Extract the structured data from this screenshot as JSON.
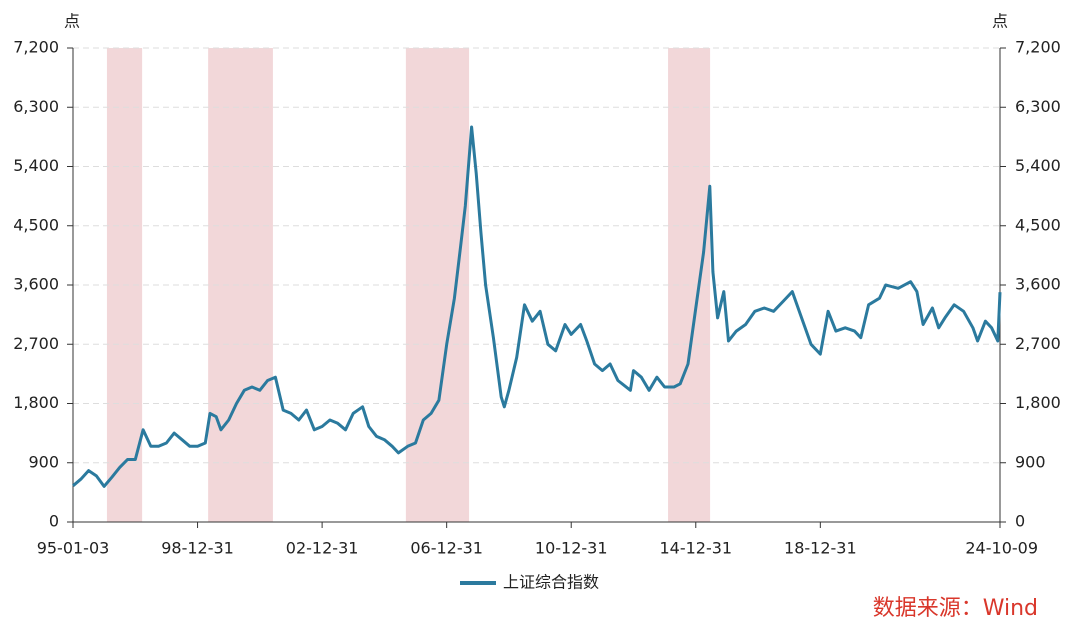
{
  "chart_data": {
    "type": "line",
    "y_unit": "点",
    "y2_unit": "点",
    "x": [
      1995.0,
      1995.25,
      1995.5,
      1995.75,
      1996.0,
      1996.25,
      1996.5,
      1996.75,
      1997.0,
      1997.25,
      1997.5,
      1997.75,
      1998.0,
      1998.25,
      1998.5,
      1998.75,
      1999.0,
      1999.25,
      1999.4,
      1999.6,
      1999.75,
      2000.0,
      2000.25,
      2000.5,
      2000.75,
      2001.0,
      2001.25,
      2001.5,
      2001.75,
      2002.0,
      2002.25,
      2002.5,
      2002.75,
      2003.0,
      2003.25,
      2003.5,
      2003.75,
      2004.0,
      2004.3,
      2004.5,
      2004.75,
      2005.0,
      2005.25,
      2005.45,
      2005.75,
      2006.0,
      2006.25,
      2006.5,
      2006.75,
      2007.0,
      2007.25,
      2007.45,
      2007.6,
      2007.8,
      2007.95,
      2008.1,
      2008.25,
      2008.5,
      2008.75,
      2008.85,
      2009.0,
      2009.25,
      2009.5,
      2009.75,
      2010.0,
      2010.25,
      2010.5,
      2010.8,
      2011.0,
      2011.3,
      2011.5,
      2011.75,
      2012.0,
      2012.25,
      2012.5,
      2012.9,
      2013.0,
      2013.25,
      2013.5,
      2013.75,
      2014.0,
      2014.3,
      2014.5,
      2014.75,
      2015.0,
      2015.25,
      2015.45,
      2015.55,
      2015.7,
      2015.9,
      2016.05,
      2016.3,
      2016.6,
      2016.9,
      2017.2,
      2017.5,
      2017.8,
      2018.1,
      2018.4,
      2018.7,
      2019.0,
      2019.25,
      2019.5,
      2019.8,
      2020.1,
      2020.3,
      2020.55,
      2020.9,
      2021.1,
      2021.5,
      2021.9,
      2022.1,
      2022.3,
      2022.6,
      2022.8,
      2023.0,
      2023.3,
      2023.6,
      2023.9,
      2024.05,
      2024.3,
      2024.5,
      2024.7,
      2024.77
    ],
    "series": [
      {
        "name": "上证综合指数",
        "color": "#2b7a9e",
        "values": [
          550,
          650,
          780,
          700,
          540,
          680,
          830,
          950,
          950,
          1400,
          1150,
          1150,
          1200,
          1350,
          1250,
          1150,
          1150,
          1200,
          1650,
          1600,
          1400,
          1550,
          1800,
          2000,
          2050,
          2000,
          2150,
          2200,
          1700,
          1650,
          1550,
          1700,
          1400,
          1450,
          1550,
          1500,
          1400,
          1650,
          1750,
          1450,
          1300,
          1250,
          1150,
          1050,
          1150,
          1200,
          1550,
          1650,
          1850,
          2700,
          3400,
          4200,
          4800,
          6000,
          5300,
          4400,
          3600,
          2800,
          1900,
          1750,
          2000,
          2500,
          3300,
          3050,
          3200,
          2700,
          2600,
          3000,
          2850,
          3000,
          2750,
          2400,
          2300,
          2400,
          2150,
          2000,
          2300,
          2200,
          2000,
          2200,
          2050,
          2050,
          2100,
          2400,
          3250,
          4100,
          5100,
          3800,
          3100,
          3500,
          2750,
          2900,
          3000,
          3200,
          3250,
          3200,
          3350,
          3500,
          3100,
          2700,
          2550,
          3200,
          2900,
          2950,
          2900,
          2800,
          3300,
          3400,
          3600,
          3550,
          3650,
          3500,
          3000,
          3250,
          2950,
          3100,
          3300,
          3200,
          2950,
          2750,
          3050,
          2950,
          2750,
          3490
        ]
      }
    ],
    "shaded": [
      [
        1996.09,
        1997.22
      ],
      [
        1999.34,
        2001.42
      ],
      [
        2005.69,
        2007.72
      ],
      [
        2014.11,
        2015.46
      ]
    ],
    "shade_color": "#f2d7d9",
    "xlim": [
      1995.0,
      2024.77
    ],
    "xticks": [
      {
        "value": 1995.0,
        "label": "95-01-03"
      },
      {
        "value": 1999.0,
        "label": "98-12-31"
      },
      {
        "value": 2003.0,
        "label": "02-12-31"
      },
      {
        "value": 2007.0,
        "label": "06-12-31"
      },
      {
        "value": 2011.0,
        "label": "10-12-31"
      },
      {
        "value": 2015.0,
        "label": "14-12-31"
      },
      {
        "value": 2019.0,
        "label": "18-12-31"
      },
      {
        "value": 2024.77,
        "label": "24-10-09"
      }
    ],
    "ylim": [
      0,
      7200
    ],
    "yticks": [
      0,
      900,
      {
        "value": 1800,
        "label": "1,800"
      },
      {
        "value": 2700,
        "label": "2,700"
      },
      {
        "value": 3600,
        "label": "3,600"
      },
      {
        "value": 4500,
        "label": "4,500"
      },
      {
        "value": 5400,
        "label": "5,400"
      },
      {
        "value": 6300,
        "label": "6,300"
      },
      {
        "value": 7200,
        "label": "7,200"
      }
    ],
    "y2lim": [
      0,
      7200
    ],
    "y2ticks": [
      0,
      900,
      {
        "value": 1800,
        "label": "1,800"
      },
      {
        "value": 2700,
        "label": "2,700"
      },
      {
        "value": 3600,
        "label": "3,600"
      },
      {
        "value": 4500,
        "label": "4,500"
      },
      {
        "value": 5400,
        "label": "5,400"
      },
      {
        "value": 6300,
        "label": "6,300"
      },
      {
        "value": 7200,
        "label": "7,200"
      }
    ],
    "grid": true,
    "source": "数据来源：Wind"
  }
}
